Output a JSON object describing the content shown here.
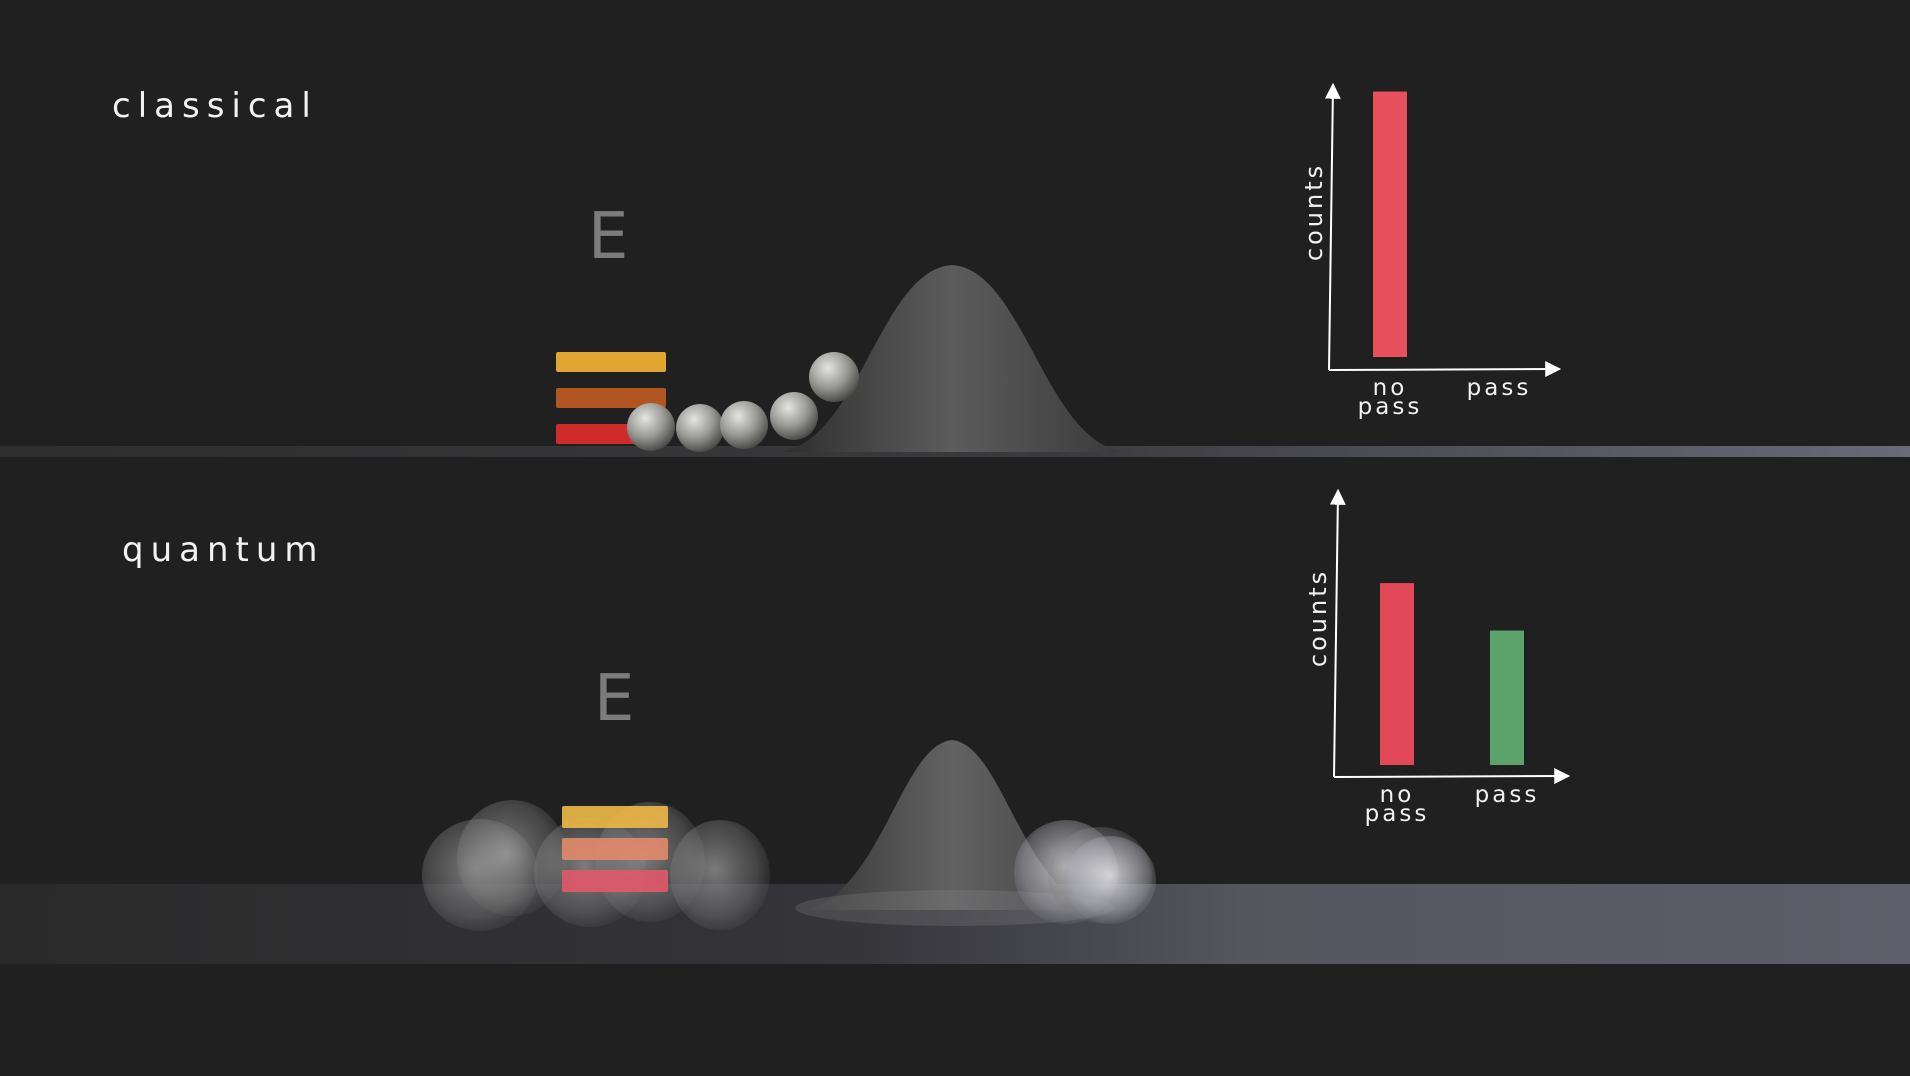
{
  "panels": [
    {
      "id": "classical",
      "label": "classical",
      "energy_symbol": "E",
      "energy_level_colors": [
        "#e1a532",
        "#b35522",
        "#cf2b2b"
      ],
      "particle_color": "#9a9a96",
      "barrier_color": "#555555"
    },
    {
      "id": "quantum",
      "label": "quantum",
      "energy_symbol": "E",
      "energy_level_colors": [
        "#efb949",
        "#e28a6c",
        "#e2596a"
      ],
      "particle_color": "#bdbdbd",
      "barrier_color": "#555555"
    }
  ],
  "chart_data": [
    {
      "type": "bar",
      "ylabel": "counts",
      "categories": [
        "no\npass",
        "pass"
      ],
      "values": [
        1.0,
        0.0
      ],
      "colors": [
        "#e8505e",
        "#5ca26b"
      ],
      "ylim": [
        0,
        1.1
      ],
      "grid": false
    },
    {
      "type": "bar",
      "ylabel": "counts",
      "categories": [
        "no\npass",
        "pass"
      ],
      "values": [
        0.69,
        0.51
      ],
      "colors": [
        "#e34858",
        "#5ca26b"
      ],
      "ylim": [
        0,
        1.1
      ],
      "grid": false
    }
  ]
}
